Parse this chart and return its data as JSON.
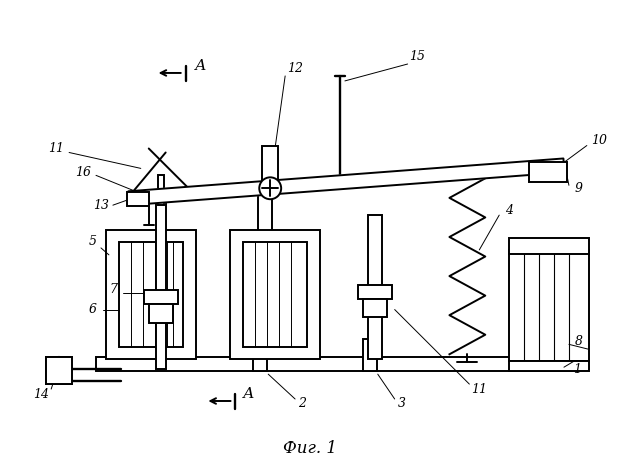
{
  "bg_color": "#ffffff",
  "line_color": "#000000",
  "title": "Фиг. 1",
  "lw": 1.4
}
